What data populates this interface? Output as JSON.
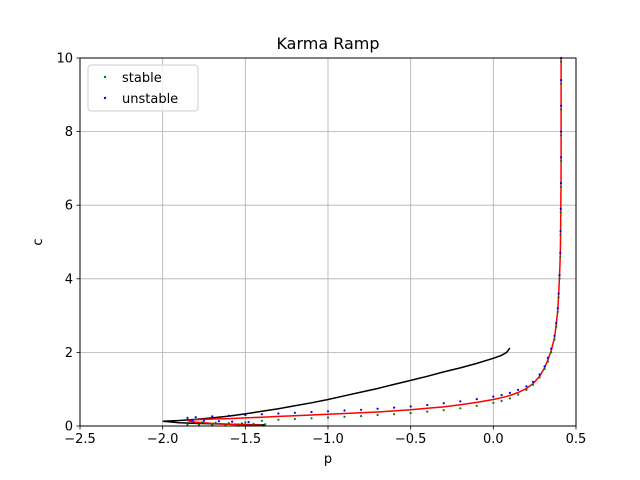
{
  "chart_data": {
    "type": "scatter",
    "title": "Karma Ramp",
    "xlabel": "p",
    "ylabel": "c",
    "xlim": [
      -2.5,
      0.5
    ],
    "ylim": [
      0,
      10
    ],
    "xticks": [
      -2.5,
      -2.0,
      -1.5,
      -1.0,
      -0.5,
      0.0,
      0.5
    ],
    "xtick_labels": [
      "−2.5",
      "−2.0",
      "−1.5",
      "−1.0",
      "−0.5",
      "0.0",
      "0.5"
    ],
    "yticks": [
      0,
      2,
      4,
      6,
      8,
      10
    ],
    "ytick_labels": [
      "0",
      "2",
      "4",
      "6",
      "8",
      "10"
    ],
    "grid": true,
    "legend_position": "top-left",
    "colors": {
      "stable": "#008000",
      "unstable": "#0000ff",
      "black_curve": "#000000",
      "red_curve": "#ff0000"
    },
    "series": [
      {
        "name": "stable",
        "kind": "points",
        "color": "#008000",
        "points": [
          [
            -1.38,
            0.05
          ],
          [
            -1.45,
            0.06
          ],
          [
            -1.52,
            0.07
          ],
          [
            -1.6,
            0.08
          ],
          [
            -1.68,
            0.09
          ],
          [
            -1.76,
            0.1
          ],
          [
            -1.85,
            0.04
          ],
          [
            -1.78,
            0.03
          ],
          [
            -1.7,
            0.02
          ],
          [
            -1.62,
            0.015
          ],
          [
            -1.54,
            0.01
          ],
          [
            -1.5,
            0.1
          ],
          [
            -1.4,
            0.14
          ],
          [
            -1.3,
            0.17
          ],
          [
            -1.2,
            0.19
          ],
          [
            -1.1,
            0.21
          ],
          [
            -1.0,
            0.23
          ],
          [
            -0.9,
            0.25
          ],
          [
            -0.8,
            0.27
          ],
          [
            -0.7,
            0.3
          ],
          [
            -0.6,
            0.32
          ],
          [
            -0.5,
            0.35
          ],
          [
            -0.4,
            0.39
          ],
          [
            -0.3,
            0.43
          ],
          [
            -0.2,
            0.48
          ],
          [
            -0.1,
            0.55
          ],
          [
            0.0,
            0.63
          ],
          [
            0.05,
            0.68
          ],
          [
            0.1,
            0.75
          ],
          [
            0.15,
            0.85
          ],
          [
            0.2,
            0.98
          ],
          [
            0.24,
            1.12
          ],
          [
            0.28,
            1.32
          ],
          [
            0.31,
            1.55
          ],
          [
            0.33,
            1.75
          ],
          [
            0.35,
            2.0
          ],
          [
            0.37,
            2.35
          ],
          [
            0.38,
            2.7
          ],
          [
            0.39,
            3.1
          ],
          [
            0.395,
            3.5
          ],
          [
            0.4,
            4.0
          ],
          [
            0.405,
            4.6
          ],
          [
            0.407,
            5.2
          ],
          [
            0.408,
            5.8
          ],
          [
            0.409,
            6.5
          ],
          [
            0.41,
            7.2
          ],
          [
            0.41,
            7.9
          ],
          [
            0.41,
            8.6
          ],
          [
            0.41,
            9.3
          ],
          [
            0.41,
            9.9
          ]
        ]
      },
      {
        "name": "unstable",
        "kind": "points",
        "color": "#0000ff",
        "points": [
          [
            -1.85,
            0.22
          ],
          [
            -1.8,
            0.24
          ],
          [
            -1.7,
            0.26
          ],
          [
            -1.6,
            0.28
          ],
          [
            -1.5,
            0.3
          ],
          [
            -1.4,
            0.32
          ],
          [
            -1.3,
            0.34
          ],
          [
            -1.2,
            0.36
          ],
          [
            -1.1,
            0.38
          ],
          [
            -1.0,
            0.4
          ],
          [
            -0.9,
            0.42
          ],
          [
            -0.8,
            0.44
          ],
          [
            -0.7,
            0.47
          ],
          [
            -0.6,
            0.5
          ],
          [
            -0.5,
            0.53
          ],
          [
            -0.4,
            0.57
          ],
          [
            -0.3,
            0.62
          ],
          [
            -0.2,
            0.67
          ],
          [
            -0.1,
            0.73
          ],
          [
            0.0,
            0.8
          ],
          [
            0.05,
            0.84
          ],
          [
            0.1,
            0.9
          ],
          [
            0.15,
            0.98
          ],
          [
            0.2,
            1.08
          ],
          [
            0.24,
            1.2
          ],
          [
            0.28,
            1.4
          ],
          [
            0.31,
            1.62
          ],
          [
            0.33,
            1.85
          ],
          [
            0.35,
            2.1
          ],
          [
            0.37,
            2.45
          ],
          [
            0.38,
            2.8
          ],
          [
            0.39,
            3.2
          ],
          [
            0.395,
            3.6
          ],
          [
            0.4,
            4.1
          ],
          [
            0.405,
            4.7
          ],
          [
            0.407,
            5.3
          ],
          [
            0.408,
            5.9
          ],
          [
            0.409,
            6.6
          ],
          [
            0.41,
            7.3
          ],
          [
            0.41,
            8.0
          ],
          [
            0.41,
            8.7
          ],
          [
            0.41,
            9.4
          ],
          [
            0.41,
            10.0
          ],
          [
            -1.82,
            0.16
          ],
          [
            -1.75,
            0.14
          ],
          [
            -1.66,
            0.13
          ],
          [
            -1.58,
            0.12
          ],
          [
            -1.48,
            0.11
          ]
        ]
      },
      {
        "kind": "line",
        "color": "#000000",
        "points": [
          [
            0.1,
            2.12
          ],
          [
            0.08,
            2.0
          ],
          [
            0.05,
            1.92
          ],
          [
            0.0,
            1.84
          ],
          [
            -0.1,
            1.7
          ],
          [
            -0.2,
            1.58
          ],
          [
            -0.3,
            1.47
          ],
          [
            -0.4,
            1.35
          ],
          [
            -0.5,
            1.24
          ],
          [
            -0.6,
            1.13
          ],
          [
            -0.7,
            1.02
          ],
          [
            -0.8,
            0.92
          ],
          [
            -0.9,
            0.82
          ],
          [
            -1.0,
            0.72
          ],
          [
            -1.1,
            0.63
          ],
          [
            -1.2,
            0.55
          ],
          [
            -1.3,
            0.47
          ],
          [
            -1.4,
            0.4
          ],
          [
            -1.5,
            0.33
          ],
          [
            -1.6,
            0.27
          ],
          [
            -1.7,
            0.22
          ],
          [
            -1.8,
            0.18
          ],
          [
            -1.9,
            0.15
          ],
          [
            -2.0,
            0.13
          ],
          [
            -1.9,
            0.09
          ],
          [
            -1.8,
            0.07
          ],
          [
            -1.7,
            0.06
          ],
          [
            -1.6,
            0.05
          ],
          [
            -1.5,
            0.04
          ],
          [
            -1.4,
            0.03
          ],
          [
            -1.38,
            0.03
          ]
        ]
      },
      {
        "kind": "line",
        "color": "#ff0000",
        "points": [
          [
            -1.4,
            0.02
          ],
          [
            -1.5,
            0.03
          ],
          [
            -1.6,
            0.05
          ],
          [
            -1.7,
            0.07
          ],
          [
            -1.8,
            0.1
          ],
          [
            -1.85,
            0.14
          ],
          [
            -1.8,
            0.17
          ],
          [
            -1.7,
            0.19
          ],
          [
            -1.6,
            0.2
          ],
          [
            -1.5,
            0.22
          ],
          [
            -1.4,
            0.24
          ],
          [
            -1.3,
            0.26
          ],
          [
            -1.2,
            0.28
          ],
          [
            -1.1,
            0.3
          ],
          [
            -1.0,
            0.32
          ],
          [
            -0.9,
            0.34
          ],
          [
            -0.8,
            0.36
          ],
          [
            -0.7,
            0.38
          ],
          [
            -0.6,
            0.41
          ],
          [
            -0.5,
            0.44
          ],
          [
            -0.4,
            0.48
          ],
          [
            -0.3,
            0.52
          ],
          [
            -0.2,
            0.58
          ],
          [
            -0.1,
            0.64
          ],
          [
            0.0,
            0.72
          ],
          [
            0.05,
            0.77
          ],
          [
            0.1,
            0.83
          ],
          [
            0.15,
            0.91
          ],
          [
            0.2,
            1.02
          ],
          [
            0.24,
            1.15
          ],
          [
            0.28,
            1.35
          ],
          [
            0.31,
            1.58
          ],
          [
            0.33,
            1.8
          ],
          [
            0.35,
            2.05
          ],
          [
            0.37,
            2.4
          ],
          [
            0.38,
            2.75
          ],
          [
            0.39,
            3.15
          ],
          [
            0.395,
            3.55
          ],
          [
            0.4,
            4.05
          ],
          [
            0.405,
            4.65
          ],
          [
            0.407,
            5.25
          ],
          [
            0.408,
            5.85
          ],
          [
            0.409,
            6.55
          ],
          [
            0.41,
            7.25
          ],
          [
            0.41,
            7.95
          ],
          [
            0.41,
            8.65
          ],
          [
            0.41,
            9.35
          ],
          [
            0.41,
            10.0
          ]
        ]
      }
    ],
    "legend": [
      {
        "label": "stable",
        "color": "#008000"
      },
      {
        "label": "unstable",
        "color": "#0000ff"
      }
    ]
  }
}
